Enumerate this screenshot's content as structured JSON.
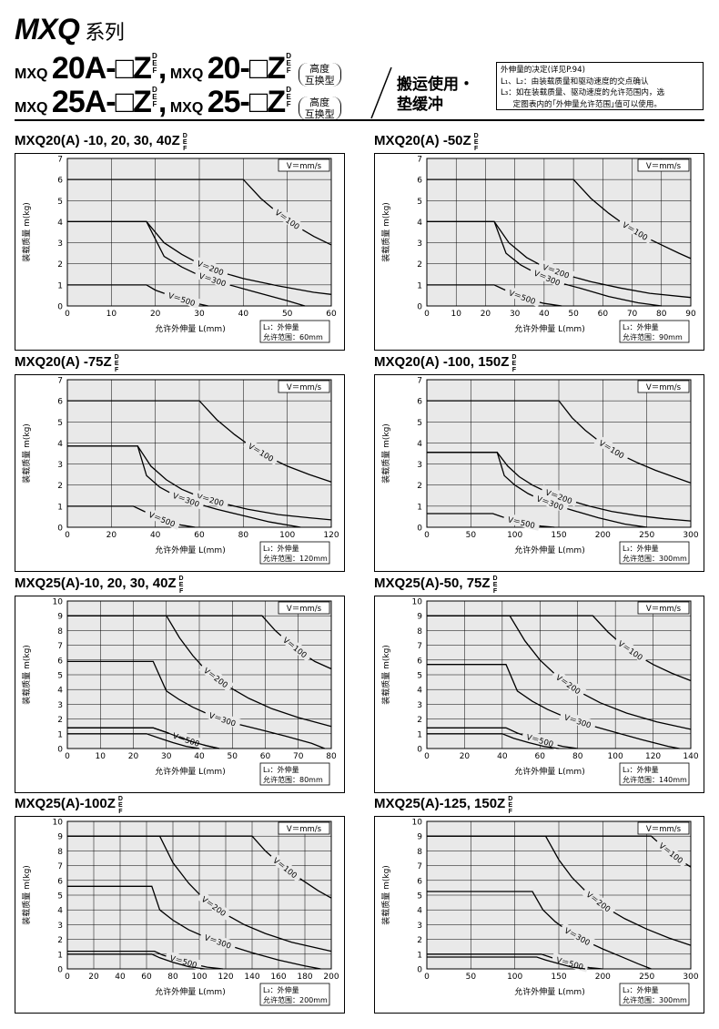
{
  "header": {
    "series_title": "MXQ",
    "series_suffix": "系列",
    "line1": {
      "prefix_a": "MXQ",
      "model_a": "20A-□Z",
      "comma": ",",
      "prefix_b": "MXQ",
      "model_b": "20-□Z"
    },
    "line2": {
      "prefix_a": "MXQ",
      "model_a": "25A-□Z",
      "comma": ",",
      "prefix_b": "MXQ",
      "model_b": "25-□Z"
    },
    "def_letters": [
      "D",
      "E",
      "F"
    ],
    "height_interchange": [
      "高度",
      "互换型"
    ],
    "title2": [
      "搬运使用・",
      "垫缓冲"
    ],
    "note": [
      "外伸量的决定(详见P.94)",
      "L₁、L₂：由装载质量和驱动速度的交点确认",
      "L₃：如在装载质量、驱动速度的允许范围内，选",
      "     定图表内的｢外伸量允许范围｣值可以使用。"
    ]
  },
  "common": {
    "ylabel": "装载质量 m(kg)",
    "xlabel": "允许外伸量 L(mm)",
    "unit_box": "V＝mm/s",
    "l3_label": "L₃：外伸量"
  },
  "chart_data": [
    {
      "type": "line",
      "title": "MXQ20(A) -10, 20, 30, 40Z",
      "x_ticks": [
        0,
        10,
        20,
        30,
        40,
        50,
        60
      ],
      "y_ticks": [
        0,
        1,
        2,
        3,
        4,
        5,
        6,
        7
      ],
      "xlim": [
        0,
        60
      ],
      "ylim": [
        0,
        7
      ],
      "l3_range": "允许范围：60mm",
      "series": [
        {
          "name": "V＝100",
          "x": [
            0,
            40,
            44,
            48,
            52,
            56,
            60
          ],
          "y": [
            6,
            6,
            5.1,
            4.4,
            3.8,
            3.3,
            2.9
          ]
        },
        {
          "name": "V＝200",
          "x": [
            0,
            18,
            22,
            26,
            30,
            35,
            40,
            48,
            56,
            60
          ],
          "y": [
            4,
            4,
            3.0,
            2.45,
            2.0,
            1.6,
            1.3,
            0.95,
            0.65,
            0.55
          ]
        },
        {
          "name": "V＝300",
          "x": [
            0,
            18,
            22,
            26,
            30,
            36,
            42,
            50,
            54
          ],
          "y": [
            4,
            4,
            2.35,
            1.85,
            1.45,
            1.05,
            0.7,
            0.25,
            0
          ]
        },
        {
          "name": "V＝500",
          "x": [
            0,
            18,
            20,
            24,
            28,
            32
          ],
          "y": [
            1,
            1,
            0.75,
            0.45,
            0.18,
            0
          ]
        }
      ]
    },
    {
      "type": "line",
      "title": "MXQ20(A) -50Z",
      "x_ticks": [
        0,
        10,
        20,
        30,
        40,
        50,
        60,
        70,
        80,
        90
      ],
      "y_ticks": [
        0,
        1,
        2,
        3,
        4,
        5,
        6,
        7
      ],
      "xlim": [
        0,
        90
      ],
      "ylim": [
        0,
        7
      ],
      "l3_range": "允许范围：90mm",
      "series": [
        {
          "name": "V＝100",
          "x": [
            0,
            50,
            56,
            62,
            68,
            74,
            80,
            86,
            90
          ],
          "y": [
            6,
            6,
            5.1,
            4.4,
            3.8,
            3.3,
            2.9,
            2.5,
            2.25
          ]
        },
        {
          "name": "V＝200",
          "x": [
            0,
            23,
            28,
            34,
            40,
            48,
            56,
            66,
            76,
            90
          ],
          "y": [
            4,
            4,
            3.0,
            2.3,
            1.85,
            1.45,
            1.15,
            0.85,
            0.6,
            0.4
          ]
        },
        {
          "name": "V＝300",
          "x": [
            0,
            23,
            27,
            32,
            38,
            44,
            52,
            62,
            72,
            80
          ],
          "y": [
            4,
            4,
            2.5,
            1.95,
            1.5,
            1.15,
            0.85,
            0.45,
            0.15,
            0
          ]
        },
        {
          "name": "V＝500",
          "x": [
            0,
            23,
            26,
            30,
            35,
            40,
            46
          ],
          "y": [
            1,
            1,
            0.8,
            0.55,
            0.3,
            0.12,
            0
          ]
        }
      ]
    },
    {
      "type": "line",
      "title": "MXQ20(A) -75Z",
      "x_ticks": [
        0,
        20,
        40,
        60,
        80,
        100,
        120
      ],
      "y_ticks": [
        0,
        1,
        2,
        3,
        4,
        5,
        6,
        7
      ],
      "xlim": [
        0,
        120
      ],
      "ylim": [
        0,
        7
      ],
      "l3_range": "允许范围：120mm",
      "series": [
        {
          "name": "V＝100",
          "x": [
            0,
            60,
            68,
            76,
            84,
            92,
            100,
            110,
            120
          ],
          "y": [
            6,
            6,
            5.1,
            4.4,
            3.8,
            3.3,
            2.9,
            2.5,
            2.15
          ]
        },
        {
          "name": "V＝200",
          "x": [
            0,
            32,
            38,
            45,
            52,
            60,
            70,
            82,
            96,
            110,
            120
          ],
          "y": [
            3.85,
            3.85,
            2.9,
            2.25,
            1.8,
            1.45,
            1.15,
            0.85,
            0.6,
            0.45,
            0.35
          ]
        },
        {
          "name": "V＝300",
          "x": [
            0,
            32,
            36,
            42,
            50,
            58,
            68,
            80,
            92,
            106
          ],
          "y": [
            3.85,
            3.85,
            2.45,
            1.9,
            1.45,
            1.15,
            0.85,
            0.55,
            0.25,
            0
          ]
        },
        {
          "name": "V＝500",
          "x": [
            0,
            30,
            34,
            40,
            46,
            52,
            58
          ],
          "y": [
            1,
            1,
            0.8,
            0.5,
            0.25,
            0.1,
            0
          ]
        }
      ]
    },
    {
      "type": "line",
      "title": "MXQ20(A) -100, 150Z",
      "x_ticks": [
        0,
        50,
        100,
        150,
        200,
        250,
        300
      ],
      "y_ticks": [
        0,
        1,
        2,
        3,
        4,
        5,
        6,
        7
      ],
      "xlim": [
        0,
        300
      ],
      "ylim": [
        0,
        7
      ],
      "l3_range": "允许范围：300mm",
      "series": [
        {
          "name": "V＝100",
          "x": [
            0,
            150,
            165,
            180,
            200,
            220,
            240,
            260,
            280,
            300
          ],
          "y": [
            6,
            6,
            5.2,
            4.6,
            3.95,
            3.45,
            3.05,
            2.7,
            2.4,
            2.1
          ]
        },
        {
          "name": "V＝200",
          "x": [
            0,
            80,
            92,
            105,
            120,
            140,
            160,
            185,
            210,
            240,
            270,
            300
          ],
          "y": [
            3.55,
            3.55,
            2.9,
            2.4,
            2.0,
            1.6,
            1.3,
            1.0,
            0.75,
            0.55,
            0.4,
            0.3
          ]
        },
        {
          "name": "V＝300",
          "x": [
            0,
            80,
            88,
            100,
            115,
            130,
            150,
            170,
            195,
            225,
            250
          ],
          "y": [
            3.55,
            3.55,
            2.45,
            2.0,
            1.6,
            1.3,
            1.0,
            0.75,
            0.45,
            0.15,
            0
          ]
        },
        {
          "name": "V＝500",
          "x": [
            0,
            75,
            85,
            100,
            115,
            130,
            145
          ],
          "y": [
            0.65,
            0.65,
            0.5,
            0.3,
            0.15,
            0.05,
            0
          ]
        }
      ]
    },
    {
      "type": "line",
      "title": "MXQ25(A)-10, 20, 30, 40Z",
      "x_ticks": [
        0,
        10,
        20,
        30,
        40,
        50,
        60,
        70,
        80
      ],
      "y_ticks": [
        0,
        1,
        2,
        3,
        4,
        5,
        6,
        7,
        8,
        9,
        10
      ],
      "xlim": [
        0,
        80
      ],
      "ylim": [
        0,
        10
      ],
      "l3_range": "允许范围：80mm",
      "series": [
        {
          "name": "V＝100",
          "x": [
            0,
            59,
            63,
            67,
            71,
            75,
            80
          ],
          "y": [
            9,
            9,
            8.0,
            7.2,
            6.5,
            5.9,
            5.4
          ]
        },
        {
          "name": "V＝200",
          "x": [
            0,
            30,
            34,
            38,
            42,
            48,
            55,
            62,
            70,
            80
          ],
          "y": [
            9,
            9,
            7.5,
            6.3,
            5.3,
            4.3,
            3.4,
            2.7,
            2.1,
            1.5
          ]
        },
        {
          "name": "V＝300",
          "x": [
            0,
            26,
            30,
            34,
            38,
            44,
            50,
            58,
            66,
            74,
            78
          ],
          "y": [
            5.9,
            5.9,
            3.9,
            3.3,
            2.8,
            2.2,
            1.75,
            1.3,
            0.85,
            0.35,
            0
          ]
        },
        {
          "name": "V＝500",
          "x": [
            0,
            26,
            30,
            34,
            38,
            42,
            46
          ],
          "y": [
            1.4,
            1.4,
            1.1,
            0.75,
            0.45,
            0.2,
            0
          ]
        },
        {
          "name": "",
          "x": [
            0,
            26,
            30,
            34,
            38,
            42,
            46
          ],
          "y": [
            1.4,
            1.4,
            1.1,
            0.75,
            0.45,
            0.2,
            0
          ]
        },
        {
          "name": "",
          "x": [
            0,
            24,
            28,
            32,
            36,
            40
          ],
          "y": [
            1,
            1,
            0.7,
            0.4,
            0.15,
            0
          ]
        }
      ]
    },
    {
      "type": "line",
      "title": "MXQ25(A)-50, 75Z",
      "x_ticks": [
        0,
        20,
        40,
        60,
        80,
        100,
        120,
        140
      ],
      "y_ticks": [
        0,
        1,
        2,
        3,
        4,
        5,
        6,
        7,
        8,
        9,
        10
      ],
      "xlim": [
        0,
        140
      ],
      "ylim": [
        0,
        10
      ],
      "l3_range": "允许范围：140mm",
      "series": [
        {
          "name": "V＝100",
          "x": [
            0,
            88,
            96,
            104,
            112,
            120,
            130,
            140
          ],
          "y": [
            9,
            9,
            7.9,
            7.0,
            6.3,
            5.7,
            5.1,
            4.6
          ]
        },
        {
          "name": "V＝200",
          "x": [
            0,
            44,
            52,
            60,
            70,
            80,
            92,
            106,
            122,
            140
          ],
          "y": [
            9,
            9,
            7.3,
            6.0,
            4.8,
            3.9,
            3.1,
            2.4,
            1.8,
            1.3
          ]
        },
        {
          "name": "V＝300",
          "x": [
            0,
            42,
            48,
            56,
            64,
            74,
            86,
            100,
            114,
            128,
            134
          ],
          "y": [
            5.7,
            5.7,
            3.9,
            3.2,
            2.65,
            2.1,
            1.6,
            1.1,
            0.6,
            0.15,
            0
          ]
        },
        {
          "name": "V＝500",
          "x": [
            0,
            42,
            48,
            56,
            64,
            72,
            80
          ],
          "y": [
            1.4,
            1.4,
            1.05,
            0.7,
            0.4,
            0.15,
            0
          ]
        },
        {
          "name": "",
          "x": [
            0,
            40,
            46,
            54,
            62,
            70
          ],
          "y": [
            1,
            1,
            0.7,
            0.4,
            0.15,
            0
          ]
        }
      ]
    },
    {
      "type": "line",
      "title": "MXQ25(A)-100Z",
      "x_ticks": [
        0,
        20,
        40,
        60,
        80,
        100,
        120,
        140,
        160,
        180,
        200
      ],
      "y_ticks": [
        0,
        1,
        2,
        3,
        4,
        5,
        6,
        7,
        8,
        9,
        10
      ],
      "xlim": [
        0,
        200
      ],
      "ylim": [
        0,
        10
      ],
      "l3_range": "允许范围：200mm",
      "series": [
        {
          "name": "V＝100",
          "x": [
            0,
            140,
            150,
            160,
            170,
            180,
            190,
            200
          ],
          "y": [
            9,
            9,
            8.0,
            7.2,
            6.5,
            5.9,
            5.3,
            4.8
          ]
        },
        {
          "name": "V＝200",
          "x": [
            0,
            70,
            80,
            92,
            104,
            118,
            134,
            150,
            170,
            200
          ],
          "y": [
            9,
            9,
            7.2,
            5.8,
            4.7,
            3.8,
            3.0,
            2.4,
            1.8,
            1.2
          ]
        },
        {
          "name": "V＝300",
          "x": [
            0,
            64,
            70,
            80,
            92,
            106,
            122,
            140,
            160,
            180,
            192
          ],
          "y": [
            5.6,
            5.6,
            4.0,
            3.3,
            2.65,
            2.1,
            1.6,
            1.1,
            0.6,
            0.2,
            0
          ]
        },
        {
          "name": "V＝500",
          "x": [
            0,
            66,
            72,
            82,
            94,
            106,
            118
          ],
          "y": [
            1.2,
            1.2,
            0.95,
            0.65,
            0.35,
            0.12,
            0
          ]
        },
        {
          "name": "",
          "x": [
            0,
            64,
            70,
            80,
            92,
            104
          ],
          "y": [
            1,
            1,
            0.75,
            0.45,
            0.15,
            0
          ]
        }
      ]
    },
    {
      "type": "line",
      "title": "MXQ25(A)-125, 150Z",
      "x_ticks": [
        0,
        50,
        100,
        150,
        200,
        250,
        300
      ],
      "y_ticks": [
        0,
        1,
        2,
        3,
        4,
        5,
        6,
        7,
        8,
        9,
        10
      ],
      "xlim": [
        0,
        300
      ],
      "ylim": [
        0,
        10
      ],
      "l3_range": "允许范围：300mm",
      "series": [
        {
          "name": "V＝100",
          "x": [
            0,
            255,
            270,
            285,
            300
          ],
          "y": [
            9,
            9,
            8.2,
            7.5,
            6.9
          ]
        },
        {
          "name": "V＝200",
          "x": [
            0,
            135,
            150,
            165,
            185,
            205,
            225,
            250,
            275,
            300
          ],
          "y": [
            9,
            9,
            7.4,
            6.2,
            5.0,
            4.1,
            3.4,
            2.7,
            2.1,
            1.6
          ]
        },
        {
          "name": "V＝300",
          "x": [
            0,
            120,
            132,
            146,
            162,
            180,
            200,
            220,
            240,
            255
          ],
          "y": [
            5.25,
            5.25,
            4.0,
            3.2,
            2.5,
            1.9,
            1.35,
            0.85,
            0.35,
            0
          ]
        },
        {
          "name": "V＝500",
          "x": [
            0,
            130,
            140,
            155,
            170,
            185,
            200
          ],
          "y": [
            1,
            1,
            0.8,
            0.5,
            0.25,
            0.08,
            0
          ]
        },
        {
          "name": "",
          "x": [
            0,
            125,
            135,
            150,
            165,
            180
          ],
          "y": [
            0.8,
            0.8,
            0.6,
            0.35,
            0.12,
            0
          ]
        }
      ]
    }
  ]
}
